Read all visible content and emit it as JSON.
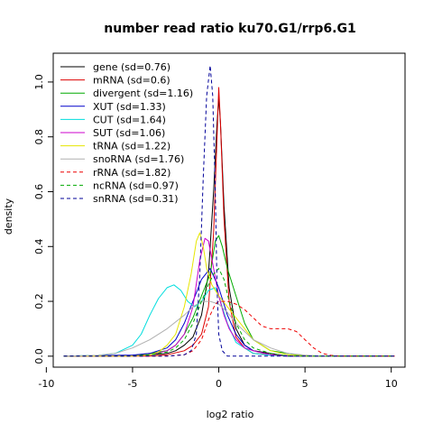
{
  "chart_data": {
    "type": "line",
    "title": "number read ratio ku70.G1/rrp6.G1",
    "xlabel": "log2 ratio",
    "ylabel": "density",
    "xlim": [
      -9.6,
      10.8
    ],
    "ylim": [
      -0.04,
      1.105
    ],
    "xticks": [
      -10,
      -5,
      0,
      5,
      10
    ],
    "yticks": [
      0.0,
      0.2,
      0.4,
      0.6,
      0.8,
      1.0
    ],
    "legend_position": "top-left",
    "series": [
      {
        "name": "gene (sd=0.76)",
        "color": "#000000",
        "dash": "solid",
        "x": [
          -9,
          -6,
          -4,
          -3,
          -2.5,
          -2,
          -1.5,
          -1,
          -0.6,
          -0.3,
          -0.1,
          0,
          0.1,
          0.3,
          0.6,
          1,
          1.5,
          2,
          3,
          4,
          6,
          10.2
        ],
        "y": [
          0,
          0,
          0.005,
          0.01,
          0.02,
          0.04,
          0.07,
          0.15,
          0.3,
          0.6,
          0.85,
          0.94,
          0.85,
          0.55,
          0.25,
          0.1,
          0.04,
          0.02,
          0.01,
          0,
          0,
          0
        ]
      },
      {
        "name": "mRNA (sd=0.6)",
        "color": "#dd0000",
        "dash": "solid",
        "x": [
          -9,
          -6,
          -4,
          -3,
          -2,
          -1.5,
          -1,
          -0.6,
          -0.3,
          -0.1,
          0,
          0.1,
          0.3,
          0.6,
          1,
          1.5,
          2,
          3,
          4,
          10.2
        ],
        "y": [
          0,
          0,
          0,
          0.005,
          0.02,
          0.04,
          0.08,
          0.18,
          0.45,
          0.8,
          0.98,
          0.85,
          0.5,
          0.2,
          0.07,
          0.03,
          0.01,
          0.005,
          0,
          0
        ]
      },
      {
        "name": "divergent (sd=1.16)",
        "color": "#00aa00",
        "dash": "solid",
        "x": [
          -9,
          -5,
          -4,
          -3,
          -2.5,
          -2,
          -1.5,
          -1,
          -0.5,
          -0.2,
          0,
          0.2,
          0.5,
          1,
          1.5,
          2,
          3,
          4,
          5,
          10.2
        ],
        "y": [
          0,
          0.003,
          0.01,
          0.02,
          0.04,
          0.08,
          0.14,
          0.22,
          0.3,
          0.42,
          0.44,
          0.4,
          0.32,
          0.22,
          0.12,
          0.06,
          0.02,
          0.01,
          0,
          0
        ]
      },
      {
        "name": "XUT (sd=1.33)",
        "color": "#0000cc",
        "dash": "solid",
        "x": [
          -9,
          -5,
          -4,
          -3,
          -2.5,
          -2,
          -1.5,
          -1,
          -0.5,
          0,
          0.5,
          1,
          1.5,
          2,
          3,
          4,
          5,
          10.2
        ],
        "y": [
          0,
          0.004,
          0.01,
          0.03,
          0.06,
          0.12,
          0.2,
          0.28,
          0.32,
          0.25,
          0.15,
          0.08,
          0.04,
          0.02,
          0.005,
          0.002,
          0,
          0
        ]
      },
      {
        "name": "CUT (sd=1.64)",
        "color": "#00dddd",
        "dash": "solid",
        "x": [
          -9,
          -7,
          -6,
          -5,
          -4.5,
          -4,
          -3.5,
          -3,
          -2.6,
          -2.2,
          -1.8,
          -1.4,
          -1,
          -0.6,
          -0.2,
          0,
          0.5,
          1,
          2,
          3,
          4,
          10.2
        ],
        "y": [
          0,
          0.003,
          0.01,
          0.04,
          0.08,
          0.15,
          0.21,
          0.25,
          0.26,
          0.24,
          0.2,
          0.18,
          0.2,
          0.24,
          0.25,
          0.22,
          0.12,
          0.05,
          0.01,
          0.003,
          0,
          0
        ]
      },
      {
        "name": "SUT (sd=1.06)",
        "color": "#cc00cc",
        "dash": "solid",
        "x": [
          -9,
          -5,
          -4,
          -3,
          -2.5,
          -2,
          -1.5,
          -1.1,
          -0.8,
          -0.6,
          -0.3,
          0,
          0.3,
          0.6,
          1,
          1.5,
          2,
          3,
          4,
          10.2
        ],
        "y": [
          0,
          0,
          0.005,
          0.02,
          0.04,
          0.08,
          0.18,
          0.35,
          0.43,
          0.42,
          0.32,
          0.22,
          0.15,
          0.1,
          0.06,
          0.03,
          0.02,
          0.005,
          0,
          0
        ]
      },
      {
        "name": "tRNA (sd=1.22)",
        "color": "#e6e600",
        "dash": "solid",
        "x": [
          -9,
          -5,
          -4,
          -3.5,
          -3,
          -2.5,
          -2,
          -1.6,
          -1.3,
          -1.1,
          -0.9,
          -0.7,
          -0.4,
          0,
          0.5,
          1,
          1.5,
          2,
          3,
          4,
          5,
          10.2
        ],
        "y": [
          0,
          0,
          0.005,
          0.015,
          0.04,
          0.08,
          0.18,
          0.3,
          0.42,
          0.45,
          0.4,
          0.32,
          0.26,
          0.22,
          0.18,
          0.14,
          0.1,
          0.06,
          0.02,
          0.005,
          0,
          0
        ]
      },
      {
        "name": "snoRNA (sd=1.76)",
        "color": "#b0b0b0",
        "dash": "solid",
        "x": [
          -9,
          -7,
          -6,
          -5,
          -4,
          -3,
          -2,
          -1.5,
          -1,
          -0.5,
          0,
          0.5,
          1,
          1.5,
          2,
          3,
          4,
          5,
          6,
          10.2
        ],
        "y": [
          0,
          0.003,
          0.01,
          0.03,
          0.06,
          0.1,
          0.15,
          0.18,
          0.2,
          0.2,
          0.19,
          0.16,
          0.12,
          0.09,
          0.06,
          0.03,
          0.01,
          0.004,
          0,
          0
        ]
      },
      {
        "name": "rRNA (sd=1.82)",
        "color": "#ee0000",
        "dash": "dashed",
        "x": [
          -9,
          -3,
          -2,
          -1.5,
          -1,
          -0.5,
          -0.2,
          0,
          0.5,
          1,
          1.5,
          2,
          2.5,
          3,
          3.5,
          4,
          4.5,
          5,
          5.5,
          6,
          6.5,
          7,
          10.2
        ],
        "y": [
          0,
          0,
          0.005,
          0.02,
          0.06,
          0.15,
          0.19,
          0.2,
          0.2,
          0.19,
          0.17,
          0.14,
          0.11,
          0.1,
          0.1,
          0.1,
          0.09,
          0.06,
          0.03,
          0.01,
          0.003,
          0,
          0
        ]
      },
      {
        "name": "ncRNA (sd=0.97)",
        "color": "#00aa00",
        "dash": "dashed",
        "x": [
          -9,
          -5,
          -4,
          -3,
          -2.5,
          -2,
          -1.5,
          -1,
          -0.6,
          -0.3,
          0,
          0.3,
          0.6,
          1,
          1.5,
          2,
          3,
          4,
          10.2
        ],
        "y": [
          0,
          0,
          0.005,
          0.015,
          0.03,
          0.06,
          0.12,
          0.2,
          0.26,
          0.3,
          0.32,
          0.28,
          0.2,
          0.12,
          0.06,
          0.03,
          0.01,
          0,
          0
        ]
      },
      {
        "name": "snRNA (sd=0.31)",
        "color": "#000099",
        "dash": "dashed",
        "x": [
          -9,
          -4,
          -3,
          -2,
          -1.6,
          -1.3,
          -1.1,
          -0.9,
          -0.7,
          -0.5,
          -0.35,
          -0.2,
          -0.1,
          0,
          0.2,
          0.5,
          1,
          10.2
        ],
        "y": [
          0,
          0,
          0,
          0.005,
          0.02,
          0.08,
          0.3,
          0.65,
          0.95,
          1.06,
          0.95,
          0.6,
          0.25,
          0.08,
          0.02,
          0,
          0,
          0
        ]
      }
    ]
  }
}
